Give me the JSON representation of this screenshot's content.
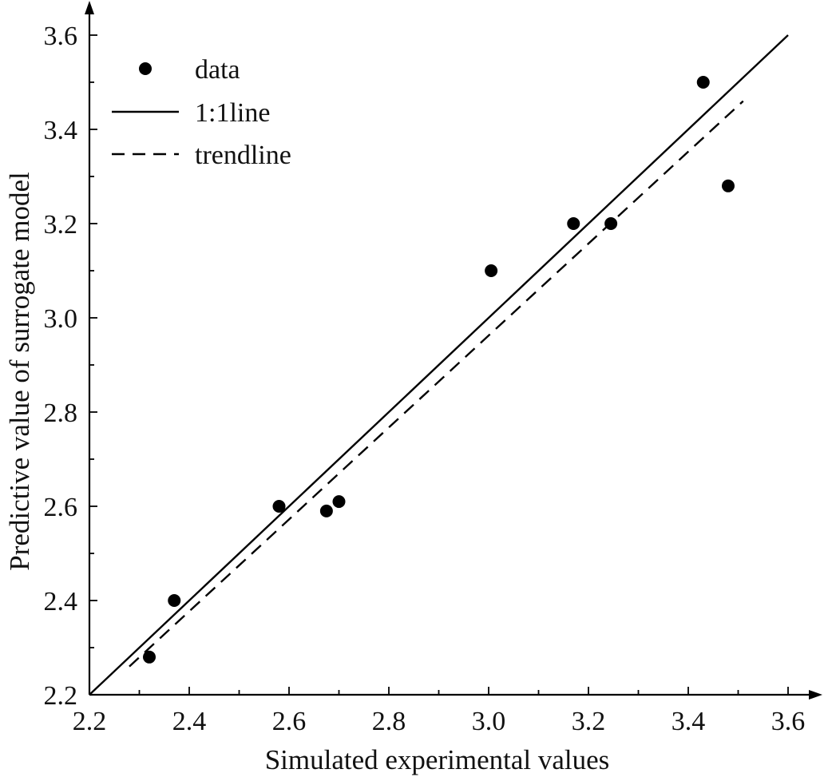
{
  "chart_data": {
    "type": "scatter",
    "xlabel": "Simulated experimental values",
    "ylabel": "Predictive value of surrogate model",
    "xlim": [
      2.2,
      3.6
    ],
    "ylim": [
      2.2,
      3.6
    ],
    "x_ticks": [
      "2.2",
      "2.4",
      "2.6",
      "2.8",
      "3.0",
      "3.2",
      "3.4",
      "3.6"
    ],
    "y_ticks": [
      "2.2",
      "2.4",
      "2.6",
      "2.8",
      "3.0",
      "3.2",
      "3.4",
      "3.6"
    ],
    "grid": false,
    "legend_position": "top-left",
    "series": [
      {
        "name": "data",
        "kind": "scatter",
        "color": "#000000",
        "x": [
          2.32,
          2.37,
          2.58,
          2.675,
          2.7,
          3.005,
          3.17,
          3.245,
          3.43,
          3.48
        ],
        "y": [
          2.28,
          2.4,
          2.6,
          2.59,
          2.61,
          3.1,
          3.2,
          3.2,
          3.5,
          3.28
        ]
      },
      {
        "name": "1:1line",
        "kind": "line",
        "style": "solid",
        "color": "#000000",
        "x": [
          2.2,
          3.6
        ],
        "y": [
          2.2,
          3.6
        ]
      },
      {
        "name": "trendline",
        "kind": "line",
        "style": "dashed",
        "color": "#000000",
        "x": [
          2.28,
          3.51
        ],
        "y": [
          2.26,
          3.46
        ]
      }
    ]
  }
}
